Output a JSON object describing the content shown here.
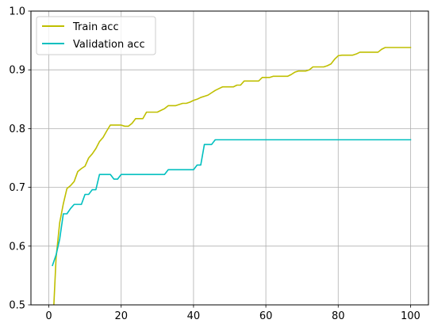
{
  "chart_data": {
    "type": "line",
    "title": "",
    "xlabel": "",
    "ylabel": "",
    "xlim": [
      -4.95,
      104.95
    ],
    "ylim": [
      0.5,
      1.0
    ],
    "x_ticks": [
      0,
      20,
      40,
      60,
      80,
      100
    ],
    "x_tick_labels": [
      "0",
      "20",
      "40",
      "60",
      "80",
      "100"
    ],
    "y_ticks": [
      0.5,
      0.6,
      0.7,
      0.8,
      0.9,
      1.0
    ],
    "y_tick_labels": [
      "0.5",
      "0.6",
      "0.7",
      "0.8",
      "0.9",
      "1.0"
    ],
    "grid": true,
    "legend_position": "upper-left",
    "series": [
      {
        "name": "Train acc",
        "color": "#bfbf00",
        "points": [
          [
            1,
            0.45
          ],
          [
            2,
            0.58
          ],
          [
            3,
            0.64
          ],
          [
            4,
            0.672
          ],
          [
            5,
            0.698
          ],
          [
            6,
            0.703
          ],
          [
            7,
            0.71
          ],
          [
            8,
            0.727
          ],
          [
            9,
            0.732
          ],
          [
            10,
            0.736
          ],
          [
            11,
            0.75
          ],
          [
            12,
            0.757
          ],
          [
            13,
            0.766
          ],
          [
            14,
            0.778
          ],
          [
            15,
            0.785
          ],
          [
            16,
            0.796
          ],
          [
            17,
            0.806
          ],
          [
            18,
            0.806
          ],
          [
            19,
            0.806
          ],
          [
            20,
            0.806
          ],
          [
            21,
            0.804
          ],
          [
            22,
            0.804
          ],
          [
            23,
            0.809
          ],
          [
            24,
            0.817
          ],
          [
            25,
            0.817
          ],
          [
            26,
            0.817
          ],
          [
            27,
            0.828
          ],
          [
            28,
            0.828
          ],
          [
            29,
            0.828
          ],
          [
            30,
            0.828
          ],
          [
            31,
            0.831
          ],
          [
            32,
            0.834
          ],
          [
            33,
            0.839
          ],
          [
            34,
            0.839
          ],
          [
            35,
            0.839
          ],
          [
            36,
            0.841
          ],
          [
            37,
            0.843
          ],
          [
            38,
            0.843
          ],
          [
            39,
            0.845
          ],
          [
            40,
            0.848
          ],
          [
            41,
            0.85
          ],
          [
            42,
            0.853
          ],
          [
            43,
            0.855
          ],
          [
            44,
            0.857
          ],
          [
            45,
            0.861
          ],
          [
            46,
            0.865
          ],
          [
            47,
            0.868
          ],
          [
            48,
            0.871
          ],
          [
            49,
            0.871
          ],
          [
            50,
            0.871
          ],
          [
            51,
            0.871
          ],
          [
            52,
            0.874
          ],
          [
            53,
            0.874
          ],
          [
            54,
            0.881
          ],
          [
            55,
            0.881
          ],
          [
            56,
            0.881
          ],
          [
            57,
            0.881
          ],
          [
            58,
            0.881
          ],
          [
            59,
            0.887
          ],
          [
            60,
            0.887
          ],
          [
            61,
            0.887
          ],
          [
            62,
            0.889
          ],
          [
            63,
            0.889
          ],
          [
            64,
            0.889
          ],
          [
            65,
            0.889
          ],
          [
            66,
            0.889
          ],
          [
            67,
            0.892
          ],
          [
            68,
            0.896
          ],
          [
            69,
            0.898
          ],
          [
            70,
            0.898
          ],
          [
            71,
            0.898
          ],
          [
            72,
            0.9
          ],
          [
            73,
            0.905
          ],
          [
            74,
            0.905
          ],
          [
            75,
            0.905
          ],
          [
            76,
            0.905
          ],
          [
            77,
            0.907
          ],
          [
            78,
            0.91
          ],
          [
            79,
            0.918
          ],
          [
            80,
            0.924
          ],
          [
            81,
            0.925
          ],
          [
            82,
            0.925
          ],
          [
            83,
            0.925
          ],
          [
            84,
            0.925
          ],
          [
            85,
            0.927
          ],
          [
            86,
            0.93
          ],
          [
            87,
            0.93
          ],
          [
            88,
            0.93
          ],
          [
            89,
            0.93
          ],
          [
            90,
            0.93
          ],
          [
            91,
            0.93
          ],
          [
            92,
            0.935
          ],
          [
            93,
            0.938
          ],
          [
            94,
            0.938
          ],
          [
            95,
            0.938
          ],
          [
            96,
            0.938
          ],
          [
            97,
            0.938
          ],
          [
            98,
            0.938
          ],
          [
            99,
            0.938
          ],
          [
            100,
            0.938
          ]
        ]
      },
      {
        "name": "Validation acc",
        "color": "#00bfbf",
        "points": [
          [
            1,
            0.567
          ],
          [
            2,
            0.585
          ],
          [
            3,
            0.612
          ],
          [
            4,
            0.655
          ],
          [
            5,
            0.655
          ],
          [
            6,
            0.664
          ],
          [
            7,
            0.671
          ],
          [
            8,
            0.671
          ],
          [
            9,
            0.671
          ],
          [
            10,
            0.688
          ],
          [
            11,
            0.688
          ],
          [
            12,
            0.696
          ],
          [
            13,
            0.696
          ],
          [
            14,
            0.722
          ],
          [
            15,
            0.722
          ],
          [
            16,
            0.722
          ],
          [
            17,
            0.722
          ],
          [
            18,
            0.714
          ],
          [
            19,
            0.714
          ],
          [
            20,
            0.722
          ],
          [
            21,
            0.722
          ],
          [
            22,
            0.722
          ],
          [
            23,
            0.722
          ],
          [
            24,
            0.722
          ],
          [
            25,
            0.722
          ],
          [
            26,
            0.722
          ],
          [
            27,
            0.722
          ],
          [
            28,
            0.722
          ],
          [
            29,
            0.722
          ],
          [
            30,
            0.722
          ],
          [
            31,
            0.722
          ],
          [
            32,
            0.722
          ],
          [
            33,
            0.73
          ],
          [
            34,
            0.73
          ],
          [
            35,
            0.73
          ],
          [
            36,
            0.73
          ],
          [
            37,
            0.73
          ],
          [
            38,
            0.73
          ],
          [
            39,
            0.73
          ],
          [
            40,
            0.73
          ],
          [
            41,
            0.738
          ],
          [
            42,
            0.738
          ],
          [
            43,
            0.773
          ],
          [
            44,
            0.773
          ],
          [
            45,
            0.773
          ],
          [
            46,
            0.781
          ],
          [
            47,
            0.781
          ],
          [
            48,
            0.781
          ],
          [
            49,
            0.781
          ],
          [
            50,
            0.781
          ],
          [
            55,
            0.781
          ],
          [
            60,
            0.781
          ],
          [
            65,
            0.781
          ],
          [
            70,
            0.781
          ],
          [
            75,
            0.781
          ],
          [
            80,
            0.781
          ],
          [
            85,
            0.781
          ],
          [
            90,
            0.781
          ],
          [
            95,
            0.781
          ],
          [
            100,
            0.781
          ]
        ]
      }
    ]
  }
}
